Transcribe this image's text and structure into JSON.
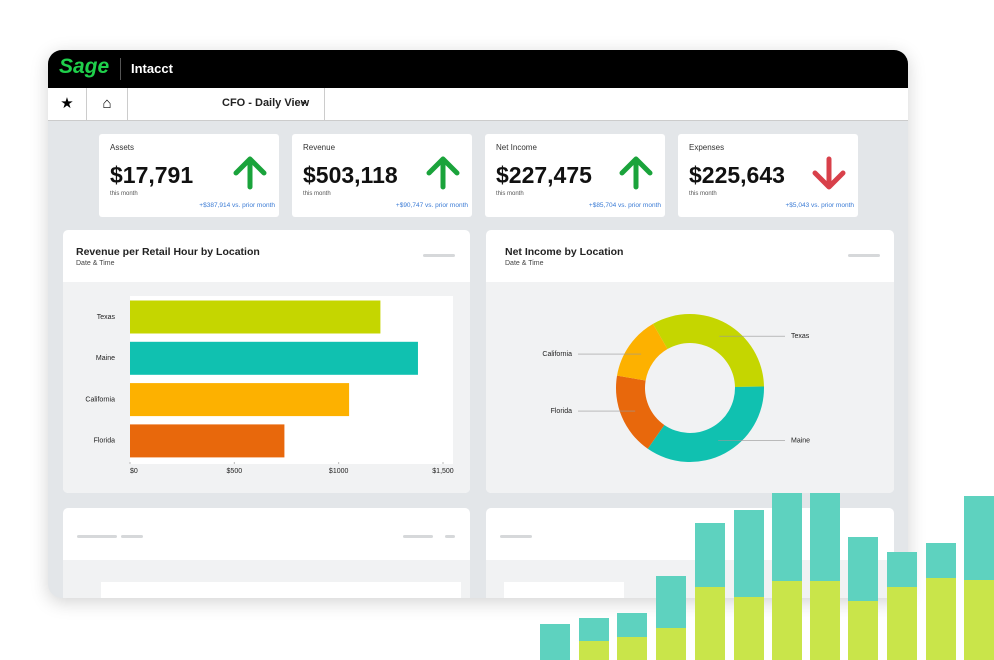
{
  "header": {
    "brand": "Sage",
    "product": "Intacct"
  },
  "toolbar": {
    "view": "CFO - Daily View"
  },
  "kpis": [
    {
      "label": "Assets",
      "value": "$17,791",
      "period": "this month",
      "change": "+$387,914 vs. prior month",
      "trend": "up"
    },
    {
      "label": "Revenue",
      "value": "$503,118",
      "period": "this month",
      "change": "+$90,747 vs. prior month",
      "trend": "up"
    },
    {
      "label": "Net Income",
      "value": "$227,475",
      "period": "this month",
      "change": "+$85,704 vs. prior month",
      "trend": "up"
    },
    {
      "label": "Expenses",
      "value": "$225,643",
      "period": "this month",
      "change": "+$5,043 vs. prior month",
      "trend": "down"
    }
  ],
  "chart_data": [
    {
      "type": "bar",
      "orientation": "horizontal",
      "title": "Revenue per Retail Hour by Location",
      "subtitle": "Date & Time",
      "categories": [
        "Texas",
        "Maine",
        "California",
        "Florida"
      ],
      "values": [
        1200,
        1380,
        1050,
        740
      ],
      "colors": [
        "#c5d600",
        "#10c1b0",
        "#fdb100",
        "#e8680c"
      ],
      "xlim": [
        0,
        1500
      ],
      "xticks": [
        {
          "value": 0,
          "label": "$0"
        },
        {
          "value": 500,
          "label": "$500"
        },
        {
          "value": 1000,
          "label": "$1000"
        },
        {
          "value": 1500,
          "label": "$1,500"
        }
      ]
    },
    {
      "type": "donut",
      "title": "Net Income by Location",
      "subtitle": "Date & Time",
      "categories": [
        "Texas",
        "Maine",
        "Florida",
        "California"
      ],
      "values": [
        33,
        35,
        18,
        14
      ],
      "colors": [
        "#c5d600",
        "#10c1b0",
        "#e8680c",
        "#fdb100"
      ]
    }
  ]
}
